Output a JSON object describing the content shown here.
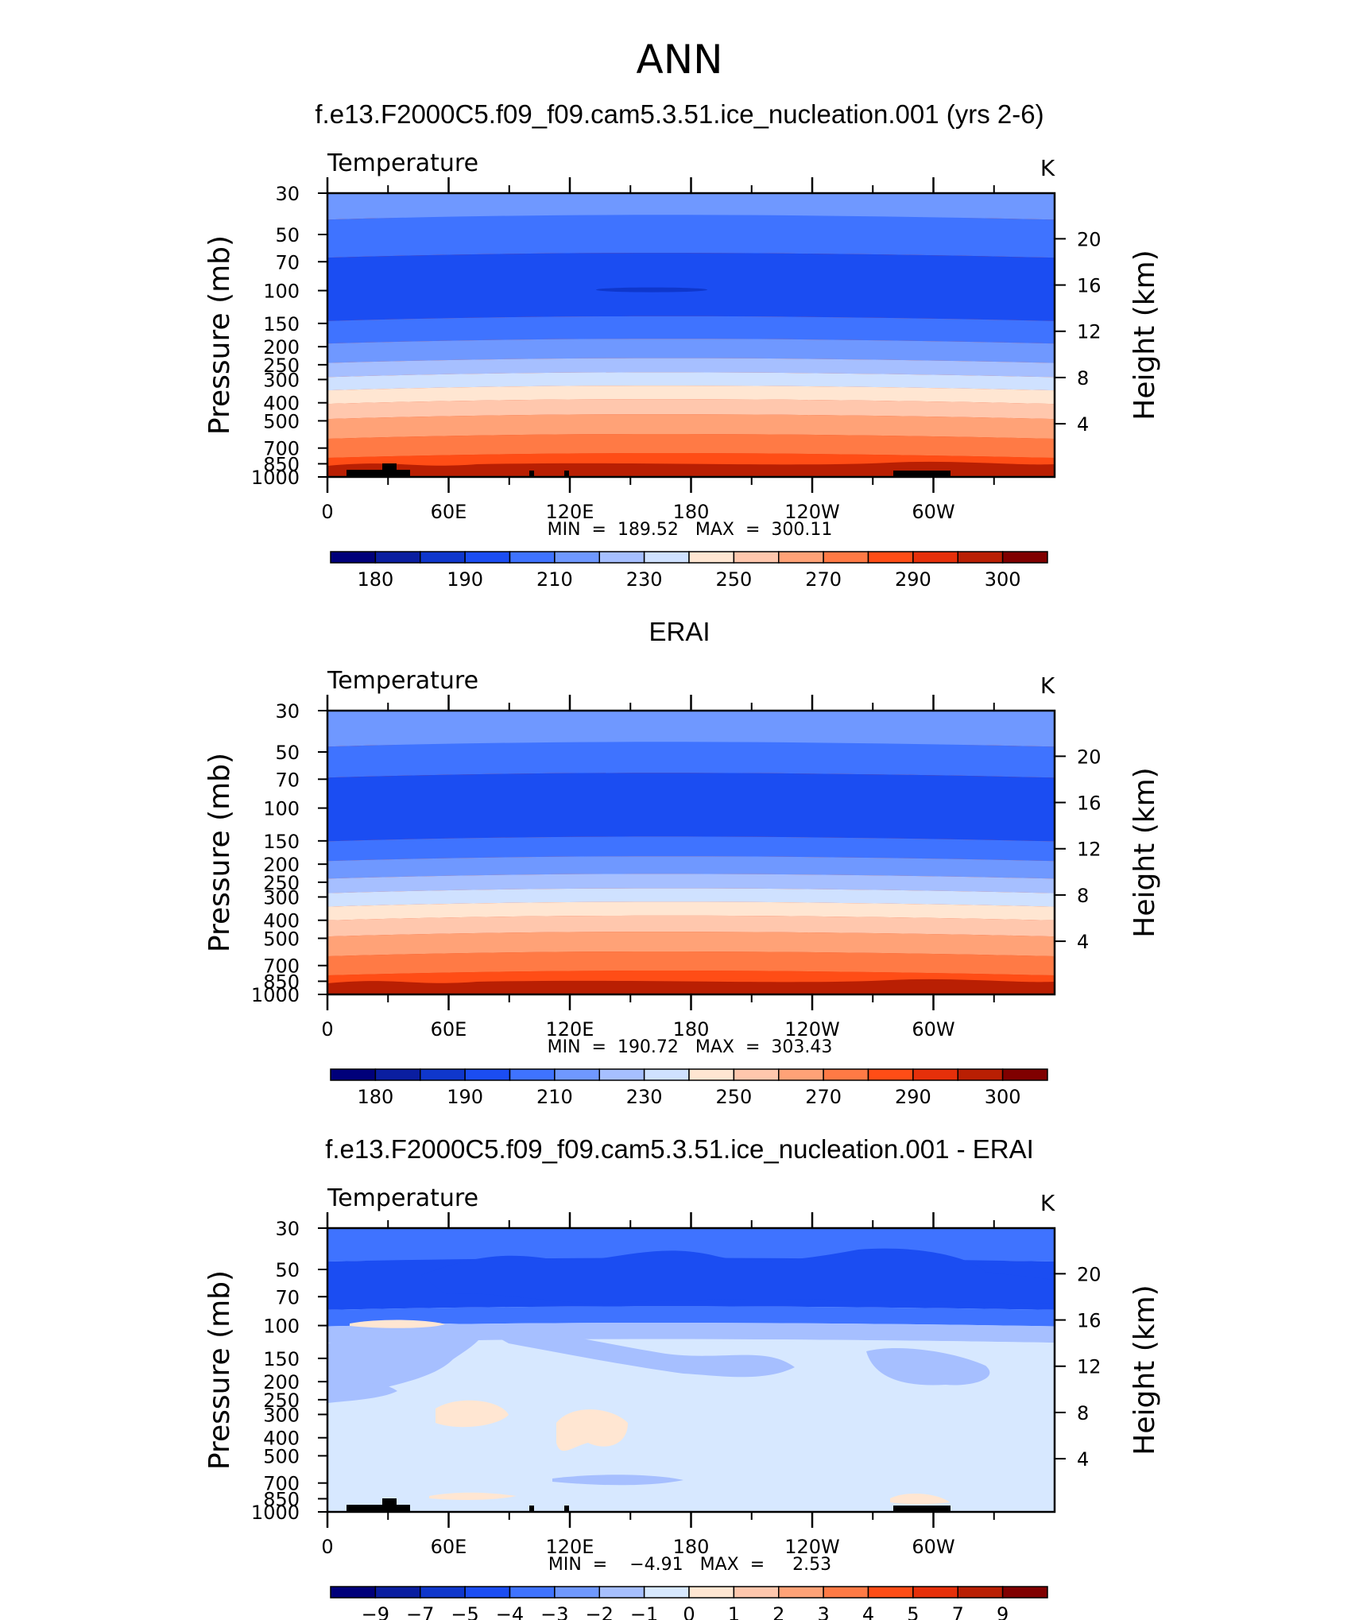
{
  "figure_title": "ANN",
  "colors": {
    "temperature_scale": [
      "#00007a",
      "#0a1ea0",
      "#0f37cc",
      "#1b4df2",
      "#3f73ff",
      "#6f98ff",
      "#a6bfff",
      "#cfe1ff",
      "#ffe6d2",
      "#ffc7ad",
      "#ffa277",
      "#ff7a45",
      "#ff4d16",
      "#e6300a",
      "#b91f03",
      "#800000"
    ],
    "difference_scale": [
      "#00007a",
      "#0a1ea0",
      "#0f37cc",
      "#1b4df2",
      "#3f73ff",
      "#6f98ff",
      "#a6bfff",
      "#d7e8ff",
      "#ffe6d2",
      "#ffc7ad",
      "#ffa277",
      "#ff7a45",
      "#ff4d16",
      "#e6300a",
      "#b91f03",
      "#800000"
    ]
  },
  "chart_data": [
    {
      "type": "heatmap",
      "title": "f.e13.F2000C5.f09_f09.cam5.3.51.ice_nucleation.001 (yrs 2-6)",
      "variable": "Temperature",
      "units": "K",
      "ylabel_left": "Pressure (mb)",
      "ylabel_right": "Height (km)",
      "xticks": [
        "0",
        "60E",
        "120E",
        "180",
        "120W",
        "60W"
      ],
      "pressure_ticks": [
        30,
        50,
        70,
        100,
        150,
        200,
        250,
        300,
        400,
        500,
        700,
        850,
        1000
      ],
      "height_ticks": [
        20,
        16,
        12,
        8,
        4
      ],
      "stats_text": "MIN  =  189.52   MAX  =  300.11",
      "colorbar_labels": [
        "180",
        "190",
        "210",
        "230",
        "250",
        "270",
        "290",
        "300"
      ],
      "levels": [
        {
          "p_top": 30,
          "p_bottom": 40,
          "color_index": 5
        },
        {
          "p_top": 40,
          "p_bottom": 64,
          "color_index": 4
        },
        {
          "p_top": 64,
          "p_bottom": 140,
          "color_index": 3
        },
        {
          "p_top": 140,
          "p_bottom": 185,
          "color_index": 4
        },
        {
          "p_top": 185,
          "p_bottom": 235,
          "color_index": 5
        },
        {
          "p_top": 235,
          "p_bottom": 280,
          "color_index": 6
        },
        {
          "p_top": 280,
          "p_bottom": 330,
          "color_index": 7
        },
        {
          "p_top": 330,
          "p_bottom": 390,
          "color_index": 8
        },
        {
          "p_top": 390,
          "p_bottom": 470,
          "color_index": 9
        },
        {
          "p_top": 470,
          "p_bottom": 600,
          "color_index": 10
        },
        {
          "p_top": 600,
          "p_bottom": 760,
          "color_index": 11
        },
        {
          "p_top": 760,
          "p_bottom": 940,
          "color_index": 12
        },
        {
          "p_top": 940,
          "p_bottom": 1000,
          "color_index": 13
        }
      ]
    },
    {
      "type": "heatmap",
      "title": "ERAI",
      "variable": "Temperature",
      "units": "K",
      "ylabel_left": "Pressure (mb)",
      "ylabel_right": "Height (km)",
      "xticks": [
        "0",
        "60E",
        "120E",
        "180",
        "120W",
        "60W"
      ],
      "pressure_ticks": [
        30,
        50,
        70,
        100,
        150,
        200,
        250,
        300,
        400,
        500,
        700,
        850,
        1000
      ],
      "height_ticks": [
        20,
        16,
        12,
        8,
        4
      ],
      "stats_text": "MIN  =  190.72   MAX  =  303.43",
      "colorbar_labels": [
        "180",
        "190",
        "210",
        "230",
        "250",
        "270",
        "290",
        "300"
      ],
      "levels": [
        {
          "p_top": 30,
          "p_bottom": 45,
          "color_index": 5
        },
        {
          "p_top": 45,
          "p_bottom": 66,
          "color_index": 4
        },
        {
          "p_top": 66,
          "p_bottom": 145,
          "color_index": 3
        },
        {
          "p_top": 145,
          "p_bottom": 185,
          "color_index": 4
        },
        {
          "p_top": 185,
          "p_bottom": 230,
          "color_index": 5
        },
        {
          "p_top": 230,
          "p_bottom": 275,
          "color_index": 6
        },
        {
          "p_top": 275,
          "p_bottom": 325,
          "color_index": 7
        },
        {
          "p_top": 325,
          "p_bottom": 385,
          "color_index": 8
        },
        {
          "p_top": 385,
          "p_bottom": 470,
          "color_index": 9
        },
        {
          "p_top": 470,
          "p_bottom": 600,
          "color_index": 10
        },
        {
          "p_top": 600,
          "p_bottom": 760,
          "color_index": 11
        },
        {
          "p_top": 760,
          "p_bottom": 930,
          "color_index": 12
        },
        {
          "p_top": 930,
          "p_bottom": 1000,
          "color_index": 13
        }
      ]
    },
    {
      "type": "heatmap",
      "title": "f.e13.F2000C5.f09_f09.cam5.3.51.ice_nucleation.001 - ERAI",
      "variable": "Temperature",
      "units": "K",
      "ylabel_left": "Pressure (mb)",
      "ylabel_right": "Height (km)",
      "xticks": [
        "0",
        "60E",
        "120E",
        "180",
        "120W",
        "60W"
      ],
      "pressure_ticks": [
        30,
        50,
        70,
        100,
        150,
        200,
        250,
        300,
        400,
        500,
        700,
        850,
        1000
      ],
      "height_ticks": [
        20,
        16,
        12,
        8,
        4
      ],
      "stats_text": "MIN  =    −4.91   MAX  =     2.53",
      "colorbar_labels": [
        "−9",
        "−7",
        "−5",
        "−4",
        "−3",
        "−2",
        "−1",
        "0",
        "1",
        "2",
        "3",
        "4",
        "5",
        "7",
        "9"
      ],
      "levels": [
        {
          "p_top": 30,
          "p_bottom": 44,
          "color_index": 4
        },
        {
          "p_top": 44,
          "p_bottom": 80,
          "color_index": 3
        },
        {
          "p_top": 80,
          "p_bottom": 98,
          "color_index": 4
        },
        {
          "p_top": 98,
          "p_bottom": 120,
          "color_index": 6
        },
        {
          "p_top": 120,
          "p_bottom": 1000,
          "color_index": 7
        }
      ]
    }
  ]
}
